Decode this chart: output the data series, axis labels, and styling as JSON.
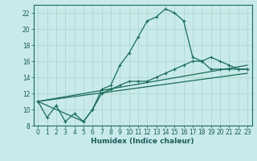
{
  "title": "",
  "xlabel": "Humidex (Indice chaleur)",
  "bg_color": "#c8eaea",
  "grid_color": "#b0d8d0",
  "line_color": "#1a6b5a",
  "xlim": [
    -0.5,
    23.5
  ],
  "ylim": [
    8,
    23
  ],
  "xticks": [
    0,
    1,
    2,
    3,
    4,
    5,
    6,
    7,
    8,
    9,
    10,
    11,
    12,
    13,
    14,
    15,
    16,
    17,
    18,
    19,
    20,
    21,
    22,
    23
  ],
  "yticks": [
    8,
    10,
    12,
    14,
    16,
    18,
    20,
    22
  ],
  "line1_x": [
    0,
    1,
    2,
    3,
    4,
    5,
    6,
    7,
    8,
    9,
    10,
    11,
    12,
    13,
    14,
    15,
    16,
    17,
    18,
    19,
    20,
    21,
    22,
    23
  ],
  "line1_y": [
    11,
    9,
    10.5,
    8.5,
    9.5,
    8.5,
    10,
    12.5,
    13,
    15.5,
    17,
    19,
    21,
    21.5,
    22.5,
    22,
    21,
    16.5,
    16,
    15,
    15,
    15,
    15,
    15
  ],
  "line2_x": [
    0,
    5,
    6,
    7,
    8,
    9,
    10,
    11,
    12,
    13,
    14,
    15,
    16,
    17,
    18,
    19,
    20,
    21,
    22,
    23
  ],
  "line2_y": [
    11,
    8.5,
    10,
    12,
    12.5,
    13,
    13.5,
    13.5,
    13.5,
    14,
    14.5,
    15,
    15.5,
    16,
    16,
    16.5,
    16,
    15.5,
    15,
    15
  ],
  "line3_x": [
    0,
    23
  ],
  "line3_y": [
    11,
    15.5
  ],
  "line4_x": [
    0,
    23
  ],
  "line4_y": [
    11,
    14.5
  ]
}
